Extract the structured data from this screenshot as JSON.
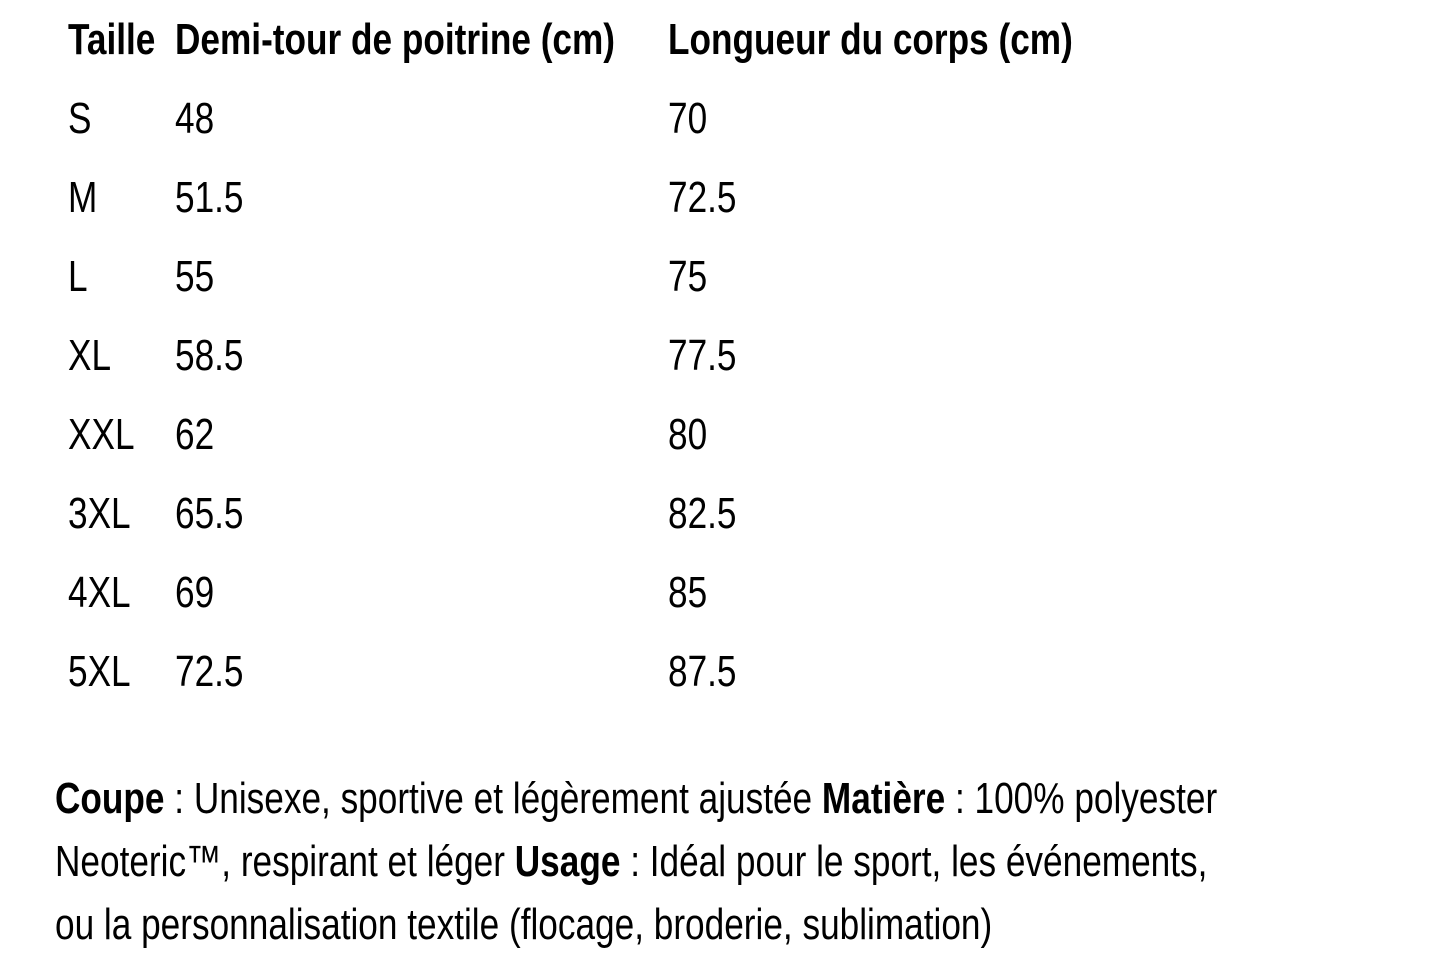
{
  "table": {
    "columns": [
      {
        "key": "size",
        "label": "Taille"
      },
      {
        "key": "chest",
        "label": "Demi-tour de poitrine (cm)"
      },
      {
        "key": "length",
        "label": "Longueur du corps (cm)"
      }
    ],
    "rows": [
      {
        "size": "S",
        "chest": "48",
        "length": "70"
      },
      {
        "size": "M",
        "chest": "51.5",
        "length": "72.5"
      },
      {
        "size": "L",
        "chest": "55",
        "length": "75"
      },
      {
        "size": "XL",
        "chest": "58.5",
        "length": "77.5"
      },
      {
        "size": "XXL",
        "chest": "62",
        "length": "80"
      },
      {
        "size": "3XL",
        "chest": "65.5",
        "length": "82.5"
      },
      {
        "size": "4XL",
        "chest": "69",
        "length": "85"
      },
      {
        "size": "5XL",
        "chest": "72.5",
        "length": "87.5"
      }
    ]
  },
  "description": {
    "lines": [
      [
        {
          "text": "Coupe",
          "bold": true
        },
        {
          "text": " : Unisexe, sportive et légèrement ajustée ",
          "bold": false
        },
        {
          "text": "Matière",
          "bold": true
        },
        {
          "text": " : 100% polyester",
          "bold": false
        }
      ],
      [
        {
          "text": "Neoteric™, respirant et léger ",
          "bold": false
        },
        {
          "text": "Usage",
          "bold": true
        },
        {
          "text": " : Idéal pour le sport, les événements,",
          "bold": false
        }
      ],
      [
        {
          "text": "ou la personnalisation textile (flocage, broderie, sublimation)",
          "bold": false
        }
      ]
    ]
  },
  "colors": {
    "text": "#000000",
    "background": "#ffffff"
  }
}
